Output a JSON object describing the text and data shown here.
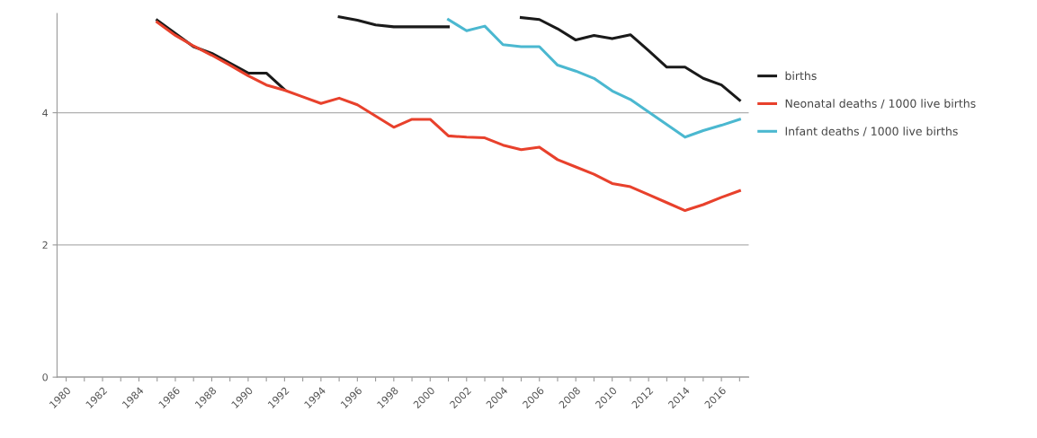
{
  "chart_data": {
    "type": "line",
    "categories": [
      "1980",
      null,
      "1982",
      null,
      "1984",
      null,
      "1986",
      null,
      "1988",
      null,
      "1990",
      null,
      "1992",
      null,
      "1994",
      null,
      "1996",
      null,
      "1998",
      null,
      "2000",
      null,
      "2002",
      null,
      "2004",
      null,
      "2006",
      null,
      "2008",
      null,
      "2010",
      null,
      "2012",
      null,
      "2014",
      null,
      "2016",
      null
    ],
    "series": [
      {
        "name": "births",
        "color": "#1a1a1a",
        "values": [
          null,
          null,
          null,
          null,
          null,
          5.4,
          5.2,
          5.0,
          4.9,
          4.75,
          4.6,
          4.6,
          4.35,
          null,
          null,
          5.45,
          5.4,
          5.33,
          5.3,
          5.3,
          5.3,
          5.3,
          null,
          null,
          null,
          5.44,
          5.41,
          5.27,
          5.1,
          5.17,
          5.12,
          5.18,
          4.94,
          4.69,
          4.69,
          4.52,
          4.42,
          4.19
        ]
      },
      {
        "name": "Neonatal deaths / 1000 live births",
        "color": "#e8412c",
        "values": [
          null,
          null,
          null,
          null,
          null,
          5.37,
          5.17,
          5.01,
          4.87,
          4.72,
          4.56,
          4.42,
          4.34,
          4.24,
          4.14,
          4.22,
          4.12,
          3.95,
          3.78,
          3.9,
          3.9,
          3.65,
          3.63,
          3.62,
          3.51,
          3.44,
          3.48,
          3.29,
          3.18,
          3.07,
          2.93,
          2.88,
          2.76,
          2.64,
          2.52,
          2.61,
          2.72,
          2.82
        ]
      },
      {
        "name": "Infant deaths / 1000 live births",
        "color": "#4bb8d0",
        "values": [
          null,
          null,
          null,
          null,
          null,
          null,
          null,
          null,
          null,
          null,
          null,
          null,
          null,
          null,
          null,
          null,
          null,
          null,
          null,
          null,
          null,
          5.41,
          5.24,
          5.31,
          5.03,
          5.0,
          5.0,
          4.72,
          4.63,
          4.52,
          4.33,
          4.2,
          4.01,
          3.82,
          3.63,
          3.73,
          3.81,
          3.9
        ]
      }
    ],
    "ylim": [
      0,
      5.5
    ],
    "yticks": [
      0,
      2,
      4
    ],
    "grid": "y",
    "legend": "right",
    "marker": "none",
    "line_style": "solid"
  }
}
